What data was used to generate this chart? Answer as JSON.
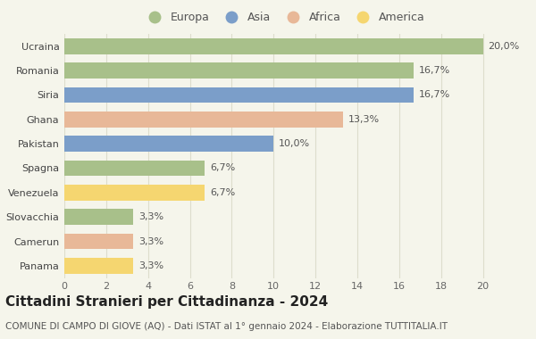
{
  "countries": [
    "Ucraina",
    "Romania",
    "Siria",
    "Ghana",
    "Pakistan",
    "Spagna",
    "Venezuela",
    "Slovacchia",
    "Camerun",
    "Panama"
  ],
  "values": [
    20.0,
    16.7,
    16.7,
    13.3,
    10.0,
    6.7,
    6.7,
    3.3,
    3.3,
    3.3
  ],
  "labels": [
    "20,0%",
    "16,7%",
    "16,7%",
    "13,3%",
    "10,0%",
    "6,7%",
    "6,7%",
    "3,3%",
    "3,3%",
    "3,3%"
  ],
  "continents": [
    "Europa",
    "Europa",
    "Asia",
    "Africa",
    "Asia",
    "Europa",
    "America",
    "Europa",
    "Africa",
    "America"
  ],
  "colors": {
    "Europa": "#a8c08a",
    "Asia": "#7b9ec9",
    "Africa": "#e8b898",
    "America": "#f5d670"
  },
  "legend_order": [
    "Europa",
    "Asia",
    "Africa",
    "America"
  ],
  "title": "Cittadini Stranieri per Cittadinanza - 2024",
  "subtitle": "COMUNE DI CAMPO DI GIOVE (AQ) - Dati ISTAT al 1° gennaio 2024 - Elaborazione TUTTITALIA.IT",
  "xlim": [
    0,
    21
  ],
  "xticks": [
    0,
    2,
    4,
    6,
    8,
    10,
    12,
    14,
    16,
    18,
    20
  ],
  "background_color": "#f5f5eb",
  "grid_color": "#ddddcc",
  "bar_height": 0.65,
  "title_fontsize": 11,
  "subtitle_fontsize": 7.5,
  "label_fontsize": 8,
  "tick_fontsize": 8,
  "legend_fontsize": 9
}
